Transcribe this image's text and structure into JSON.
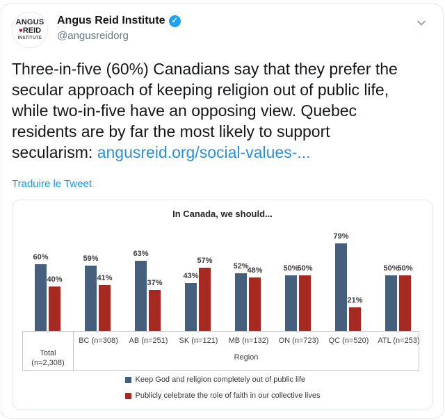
{
  "header": {
    "display_name": "Angus Reid Institute",
    "handle": "@angusreidorg",
    "verified_badge": "verified",
    "avatar_lines": {
      "line1": "ANGUS",
      "line2_leaf": "♥",
      "line2": "REID",
      "line3": "INSTITUTE"
    }
  },
  "tweet": {
    "text": "Three-in-five (60%) Canadians say that they prefer the\nsecular approach of keeping religion out of public life,\nwhile two-in-five have an opposing view. Quebec\nresidents are by far the most likely to support\nsecularism: ",
    "link_text": "angusreid.org/social-values-...",
    "translate_label": "Traduire le Tweet"
  },
  "chart_data": {
    "type": "bar",
    "title": "In Canada, we should...",
    "categories": [
      "Total (n=2,308)",
      "BC (n=308)",
      "AB (n=251)",
      "SK (n=121)",
      "MB (n=132)",
      "ON (n=723)",
      "QC (n=520)",
      "ATL (n=253)"
    ],
    "series": [
      {
        "name": "Keep God and religion completely out of public life",
        "color": "#455f7d",
        "values": [
          60,
          59,
          63,
          43,
          52,
          50,
          79,
          50
        ]
      },
      {
        "name": "Publicly celebrate the role of faith in our collective lives",
        "color": "#a62a21",
        "values": [
          40,
          41,
          37,
          57,
          48,
          50,
          21,
          50
        ]
      }
    ],
    "value_suffix": "%",
    "xlabel": "Region",
    "ylabel": "",
    "ylim": [
      0,
      100
    ],
    "grid": false,
    "legend_position": "bottom",
    "data_labels": true,
    "note_first_category_separate_cell": true
  },
  "colors": {
    "series_blue": "#455f7d",
    "series_red": "#a62a21",
    "link_blue": "#1b95e0",
    "handle_gray": "#657786",
    "card_border": "#e1e8ed",
    "chart_border": "#c6c6c6"
  }
}
